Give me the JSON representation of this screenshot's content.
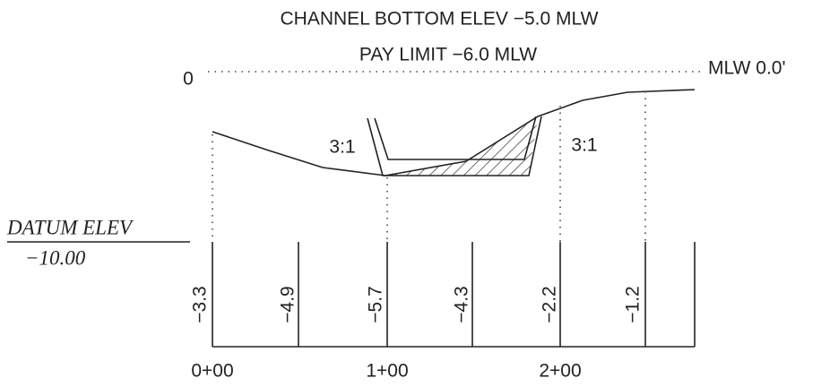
{
  "title": {
    "line1": "CHANNEL BOTTOM ELEV −5.0 MLW",
    "line2": "PAY LIMIT −6.0 MLW"
  },
  "zero_label": "0",
  "mlw_label": "MLW 0.0'",
  "slopes": [
    "3:1",
    "3:1"
  ],
  "datum": {
    "label": "DATUM ELEV",
    "value": "−10.00"
  },
  "elevations": [
    "−3.3",
    "−4.9",
    "−5.7",
    "−4.3",
    "−2.2",
    "−1.2"
  ],
  "stations": [
    "0+00",
    "1+00",
    "2+00"
  ]
}
